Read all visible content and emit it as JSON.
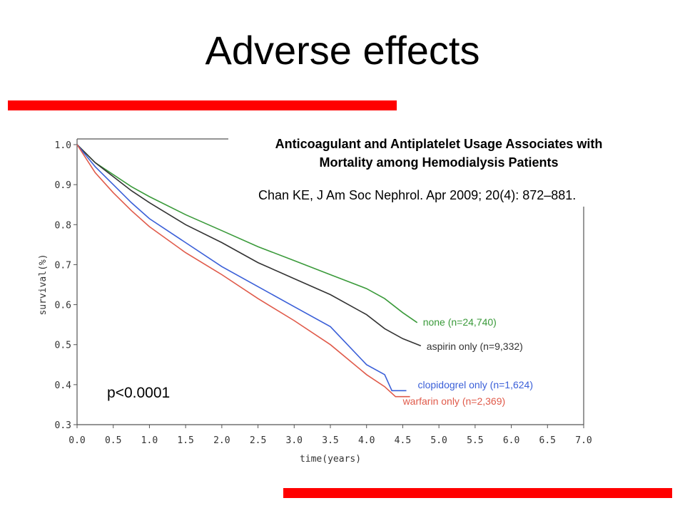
{
  "slide": {
    "title": "Adverse effects",
    "accent_color": "#ff0000"
  },
  "paper": {
    "title_line1": "Anticoagulant and Antiplatelet Usage Associates with",
    "title_line2": "Mortality among Hemodialysis Patients",
    "citation": "Chan KE, J Am Soc Nephrol. Apr 2009; 20(4): 872–881."
  },
  "annotation": {
    "pvalue": "p<0.0001"
  },
  "chart_data": {
    "type": "line",
    "xlabel": "time(years)",
    "ylabel": "survival(%)",
    "xlim": [
      0,
      7
    ],
    "ylim": [
      0.3,
      1.0
    ],
    "x_ticks": [
      "0.0",
      "0.5",
      "1.0",
      "1.5",
      "2.0",
      "2.5",
      "3.0",
      "3.5",
      "4.0",
      "4.5",
      "5.0",
      "5.5",
      "6.0",
      "6.5",
      "7.0"
    ],
    "y_ticks": [
      "0.3",
      "0.4",
      "0.5",
      "0.6",
      "0.7",
      "0.8",
      "0.9",
      "1.0"
    ],
    "series": [
      {
        "name": "none (n=24,740)",
        "color": "#3a9a3a",
        "points": [
          [
            0,
            1.0
          ],
          [
            0.25,
            0.955
          ],
          [
            0.5,
            0.925
          ],
          [
            0.75,
            0.895
          ],
          [
            1.0,
            0.87
          ],
          [
            1.5,
            0.825
          ],
          [
            2.0,
            0.785
          ],
          [
            2.5,
            0.745
          ],
          [
            3.0,
            0.71
          ],
          [
            3.5,
            0.675
          ],
          [
            4.0,
            0.64
          ],
          [
            4.25,
            0.615
          ],
          [
            4.5,
            0.58
          ],
          [
            4.7,
            0.555
          ]
        ]
      },
      {
        "name": "aspirin only (n=9,332)",
        "color": "#333333",
        "points": [
          [
            0,
            1.0
          ],
          [
            0.25,
            0.955
          ],
          [
            0.5,
            0.92
          ],
          [
            0.75,
            0.885
          ],
          [
            1.0,
            0.855
          ],
          [
            1.5,
            0.8
          ],
          [
            2.0,
            0.755
          ],
          [
            2.5,
            0.705
          ],
          [
            3.0,
            0.665
          ],
          [
            3.5,
            0.625
          ],
          [
            4.0,
            0.575
          ],
          [
            4.25,
            0.54
          ],
          [
            4.5,
            0.515
          ],
          [
            4.75,
            0.497
          ]
        ]
      },
      {
        "name": "clopidogrel only (n=1,624)",
        "color": "#3a5fd8",
        "points": [
          [
            0,
            1.0
          ],
          [
            0.25,
            0.945
          ],
          [
            0.5,
            0.9
          ],
          [
            0.75,
            0.855
          ],
          [
            1.0,
            0.815
          ],
          [
            1.5,
            0.755
          ],
          [
            2.0,
            0.695
          ],
          [
            2.5,
            0.645
          ],
          [
            3.0,
            0.595
          ],
          [
            3.5,
            0.545
          ],
          [
            4.0,
            0.45
          ],
          [
            4.25,
            0.425
          ],
          [
            4.35,
            0.385
          ],
          [
            4.55,
            0.385
          ]
        ]
      },
      {
        "name": "warfarin only (n=2,369)",
        "color": "#e05a4a",
        "points": [
          [
            0,
            1.0
          ],
          [
            0.25,
            0.93
          ],
          [
            0.5,
            0.88
          ],
          [
            0.75,
            0.835
          ],
          [
            1.0,
            0.795
          ],
          [
            1.5,
            0.73
          ],
          [
            2.0,
            0.675
          ],
          [
            2.5,
            0.615
          ],
          [
            3.0,
            0.56
          ],
          [
            3.5,
            0.5
          ],
          [
            4.0,
            0.425
          ],
          [
            4.25,
            0.395
          ],
          [
            4.4,
            0.37
          ],
          [
            4.6,
            0.37
          ]
        ]
      }
    ]
  }
}
